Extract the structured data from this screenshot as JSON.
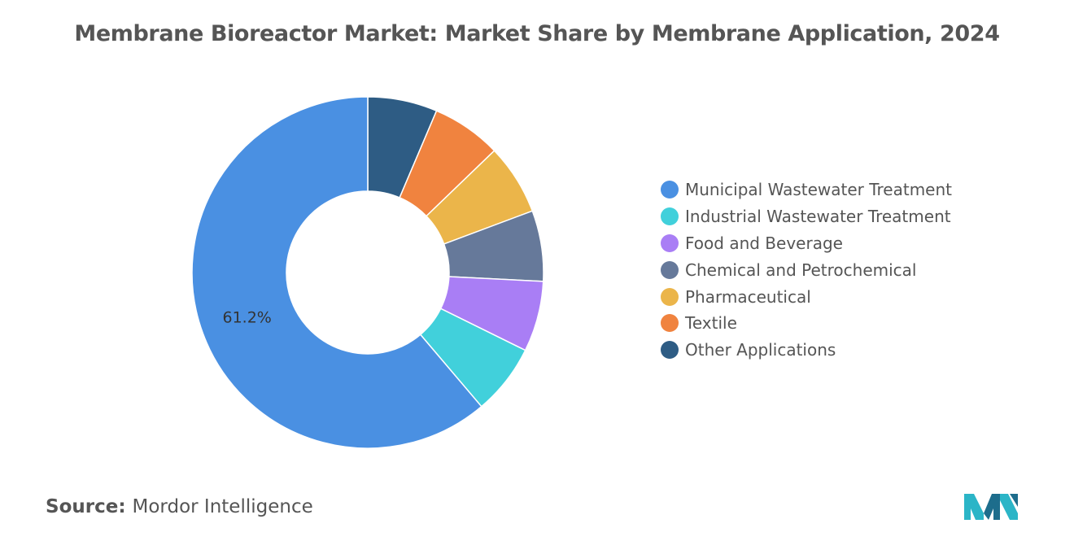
{
  "chart_data": {
    "type": "pie",
    "title": "Membrane Bioreactor Market: Market Share by Membrane Application, 2024",
    "donut": true,
    "categories": [
      "Municipal Wastewater Treatment",
      "Industrial Wastewater Treatment",
      "Food and Beverage",
      "Chemical and Petrochemical",
      "Pharmaceutical",
      "Textile",
      "Other Applications"
    ],
    "values": [
      61.2,
      6.5,
      6.5,
      6.5,
      6.5,
      6.4,
      6.4
    ],
    "colors": [
      "#4a90e2",
      "#41d0db",
      "#a97ef5",
      "#66799a",
      "#ebb54a",
      "#f0833f",
      "#2e5c84"
    ],
    "data_labels": [
      "61.2%",
      "",
      "",
      "",
      "",
      "",
      ""
    ],
    "start": "12 o'clock",
    "direction": "clockwise, Other Applications first",
    "legend_position": "right"
  },
  "source": {
    "label": "Source:",
    "name": "Mordor Intelligence"
  },
  "logo_name": "mordor-intelligence-logo"
}
